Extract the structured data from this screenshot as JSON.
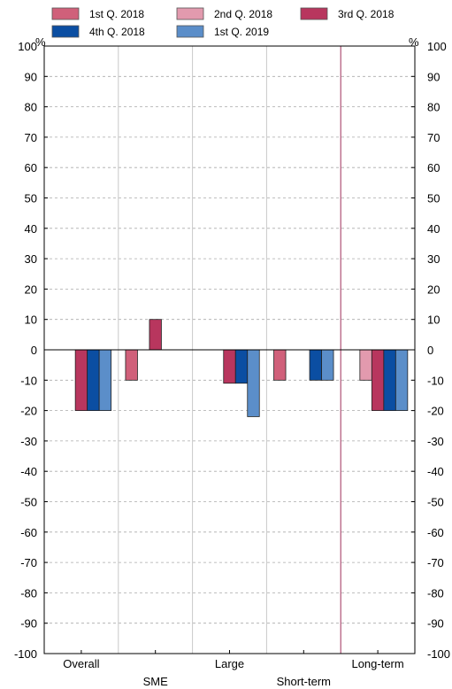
{
  "chart_data": {
    "type": "bar",
    "unit_left": "%",
    "unit_right": "%",
    "categories": [
      "Overall",
      "SME",
      "Large",
      "Short-term",
      "Long-term"
    ],
    "ylim": [
      -100,
      100
    ],
    "yticks": [
      100,
      90,
      80,
      70,
      60,
      50,
      40,
      30,
      20,
      10,
      0,
      -10,
      -20,
      -30,
      -40,
      -50,
      -60,
      -70,
      -80,
      -90,
      -100
    ],
    "grid": true,
    "legend_position": "top",
    "series": [
      {
        "name": "1st Q. 2018",
        "color": "#d0607a",
        "values": [
          0,
          -10,
          0,
          -10,
          0
        ]
      },
      {
        "name": "2nd Q. 2018",
        "color": "#e29aae",
        "values": [
          0,
          0,
          0,
          0,
          -10
        ]
      },
      {
        "name": "3rd Q. 2018",
        "color": "#b8365e",
        "values": [
          -20,
          10,
          -11,
          0,
          -20
        ]
      },
      {
        "name": "4th Q. 2018",
        "color": "#0b4ea2",
        "values": [
          -20,
          0,
          -11,
          -10,
          -20
        ]
      },
      {
        "name": "1st Q. 2019",
        "color": "#5b8ec9",
        "values": [
          -20,
          0,
          -22,
          -10,
          -20
        ]
      }
    ]
  }
}
